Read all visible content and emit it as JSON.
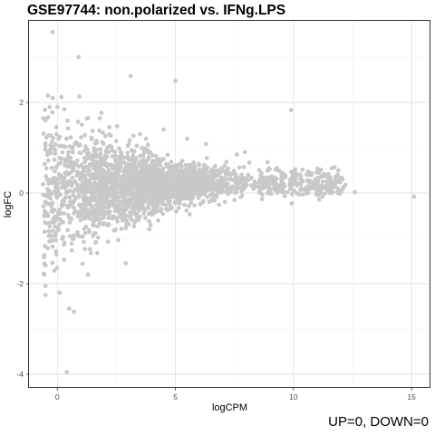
{
  "chart_data": {
    "type": "scatter",
    "title": "GSE97744: non.polarized vs. IFNg.LPS",
    "xlabel": "logCPM",
    "ylabel": "logFC",
    "xlim": [
      -1.2,
      15.8
    ],
    "ylim": [
      -4.3,
      3.8
    ],
    "x_ticks": [
      0,
      5,
      10,
      15
    ],
    "y_ticks": [
      -4,
      -2,
      0,
      2
    ],
    "grid": true,
    "point_color": "#c8c8c8",
    "annotation": "UP=0, DOWN=0",
    "n_bulk_points": 3000,
    "bulk_description": "MA plot point cloud: logFC spread is wide at low logCPM (about -2 to 2 near logCPM 0) and narrows to about -0.3 to 0.5 at logCPM 10-12",
    "points": [
      {
        "x": -0.2,
        "y": 3.55
      },
      {
        "x": 0.9,
        "y": 3.0
      },
      {
        "x": 3.1,
        "y": 2.58
      },
      {
        "x": 5.0,
        "y": 2.48
      },
      {
        "x": 9.9,
        "y": 1.83
      },
      {
        "x": 15.1,
        "y": -0.08
      },
      {
        "x": 12.6,
        "y": 0.02
      },
      {
        "x": 12.2,
        "y": 0.18
      },
      {
        "x": 11.9,
        "y": 0.5
      },
      {
        "x": 0.4,
        "y": -3.95
      },
      {
        "x": 0.5,
        "y": -2.55
      },
      {
        "x": 0.7,
        "y": -2.62
      },
      {
        "x": -0.5,
        "y": -2.05
      },
      {
        "x": -0.5,
        "y": -2.25
      },
      {
        "x": 0.1,
        "y": -2.2
      },
      {
        "x": 1.3,
        "y": -1.8
      },
      {
        "x": 2.9,
        "y": -1.55
      },
      {
        "x": -0.4,
        "y": 2.15
      },
      {
        "x": -0.2,
        "y": 2.1
      },
      {
        "x": 0.0,
        "y": 1.9
      },
      {
        "x": 0.3,
        "y": 1.85
      },
      {
        "x": 1.8,
        "y": 1.65
      },
      {
        "x": 2.2,
        "y": 1.45
      },
      {
        "x": 4.5,
        "y": 1.4
      },
      {
        "x": 3.5,
        "y": 1.3
      },
      {
        "x": 5.5,
        "y": 1.2
      },
      {
        "x": 6.3,
        "y": 1.08
      },
      {
        "x": 7.6,
        "y": 0.85
      },
      {
        "x": 8.9,
        "y": 0.68
      },
      {
        "x": 9.3,
        "y": 0.55
      }
    ]
  }
}
